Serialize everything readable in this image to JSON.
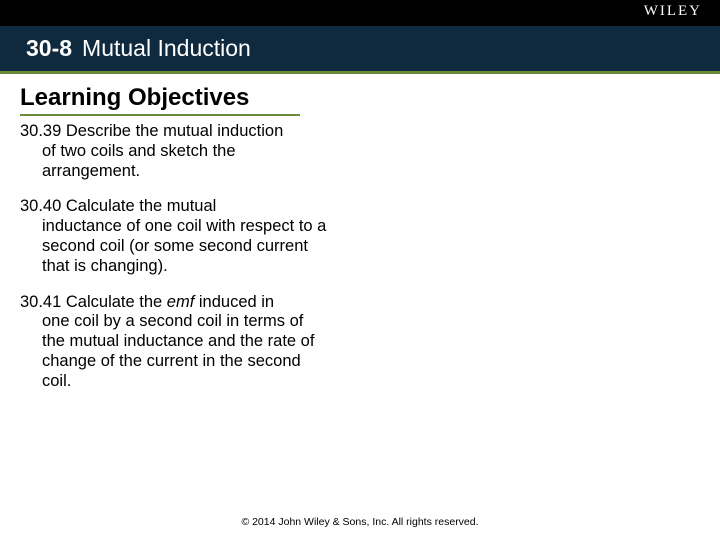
{
  "brand": {
    "logo_text": "WILEY"
  },
  "header": {
    "section_number": "30-8",
    "section_title": "Mutual Induction"
  },
  "subheading": "Learning Objectives",
  "objectives": [
    {
      "number": "30.39",
      "first": " Describe the mutual induction",
      "rest": "of two coils and sketch the arrangement."
    },
    {
      "number": "30.40",
      "first": " Calculate the mutual",
      "rest": "inductance of one coil with respect to a second coil (or some second current that is changing)."
    },
    {
      "number": "30.41",
      "first": " Calculate the ",
      "emf_word": "emf",
      "first_tail": " induced in",
      "rest": "one coil by a second coil in terms of the mutual inductance and the rate of change of the current in the second coil."
    }
  ],
  "footer": {
    "copyright": "© 2014 John Wiley & Sons, Inc. All rights reserved."
  },
  "colors": {
    "top_bar_bg": "#000000",
    "title_bar_bg": "#0f2a3f",
    "accent_green": "#6a8a3a",
    "text": "#000000",
    "logo_text": "#ffffff"
  }
}
